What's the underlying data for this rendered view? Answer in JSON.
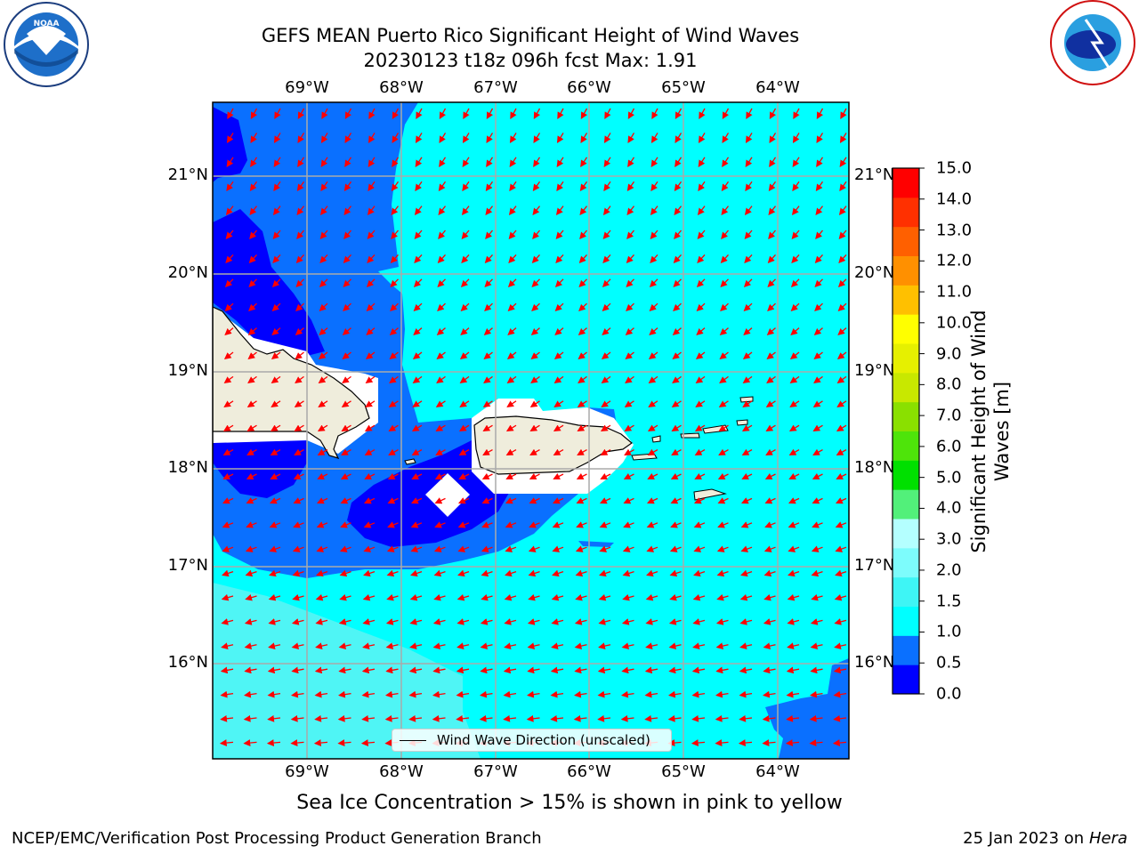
{
  "title": {
    "line1": "GEFS MEAN Puerto Rico Significant Height of Wind Waves",
    "line2": "20230123 t18z 096h fcst   Max: 1.91"
  },
  "axes": {
    "lon_labels": [
      "69°W",
      "68°W",
      "67°W",
      "66°W",
      "65°W",
      "64°W"
    ],
    "lat_labels": [
      "21°N",
      "20°N",
      "19°N",
      "18°N",
      "17°N",
      "16°N"
    ]
  },
  "colorbar": {
    "title": "Significant Height of Wind Waves [m]",
    "ticks": [
      "0.0",
      "0.5",
      "1.0",
      "1.5",
      "2.0",
      "3.0",
      "4.0",
      "5.0",
      "6.0",
      "7.0",
      "8.0",
      "9.0",
      "10.0",
      "11.0",
      "12.0",
      "13.0",
      "14.0",
      "15.0"
    ],
    "colors": [
      "#0000ff",
      "#0a70ff",
      "#00ffff",
      "#3ef5f5",
      "#7dfcfc",
      "#b4ffff",
      "#52f07a",
      "#00e000",
      "#4ee40a",
      "#8ae000",
      "#c8e800",
      "#e6f000",
      "#ffff00",
      "#ffc000",
      "#ff9000",
      "#ff6000",
      "#ff3000",
      "#ff0000"
    ]
  },
  "map_colors": {
    "band_0_0_5": "#0000ff",
    "band_0_5_1_0": "#0a70ff",
    "band_1_0_1_5": "#00ffff",
    "band_1_5_2_0": "#4ff5f5",
    "land": "#efeddc",
    "arrow": "#ff0000"
  },
  "legend": {
    "label": "Wind Wave Direction (unscaled)"
  },
  "sea_ice_note": "Sea Ice Concentration > 15% is shown in pink to yellow",
  "footer": {
    "left": "NCEP/EMC/Verification Post Processing Product Generation Branch",
    "date": "25 Jan 2023 on ",
    "machine": "Hera"
  },
  "logos": {
    "left": "NOAA",
    "right": "NATIONAL WEATHER SERVICE"
  }
}
